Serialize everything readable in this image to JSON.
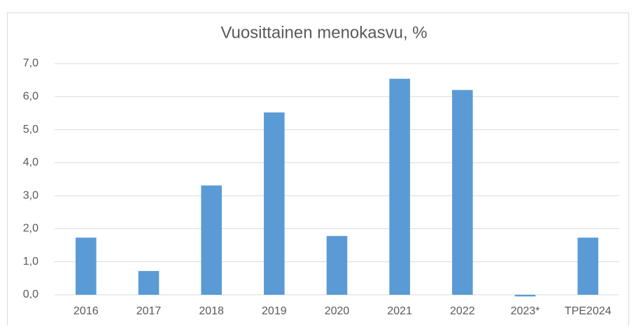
{
  "chart_data": {
    "type": "bar",
    "title": "Vuosittainen menokasvu, %",
    "categories": [
      "2016",
      "2017",
      "2018",
      "2019",
      "2020",
      "2021",
      "2022",
      "2023*",
      "TPE2024"
    ],
    "values": [
      1.73,
      0.72,
      3.31,
      5.52,
      1.78,
      6.54,
      6.2,
      -0.05,
      1.73
    ],
    "color": "#5b9bd5",
    "ylim": [
      0,
      7
    ],
    "yticks": [
      {
        "value": 0,
        "label": "0,0"
      },
      {
        "value": 1,
        "label": "1,0"
      },
      {
        "value": 2,
        "label": "2,0"
      },
      {
        "value": 3,
        "label": "3,0"
      },
      {
        "value": 4,
        "label": "4,0"
      },
      {
        "value": 5,
        "label": "5,0"
      },
      {
        "value": 6,
        "label": "6,0"
      },
      {
        "value": 7,
        "label": "7,0"
      }
    ],
    "grid": true
  }
}
